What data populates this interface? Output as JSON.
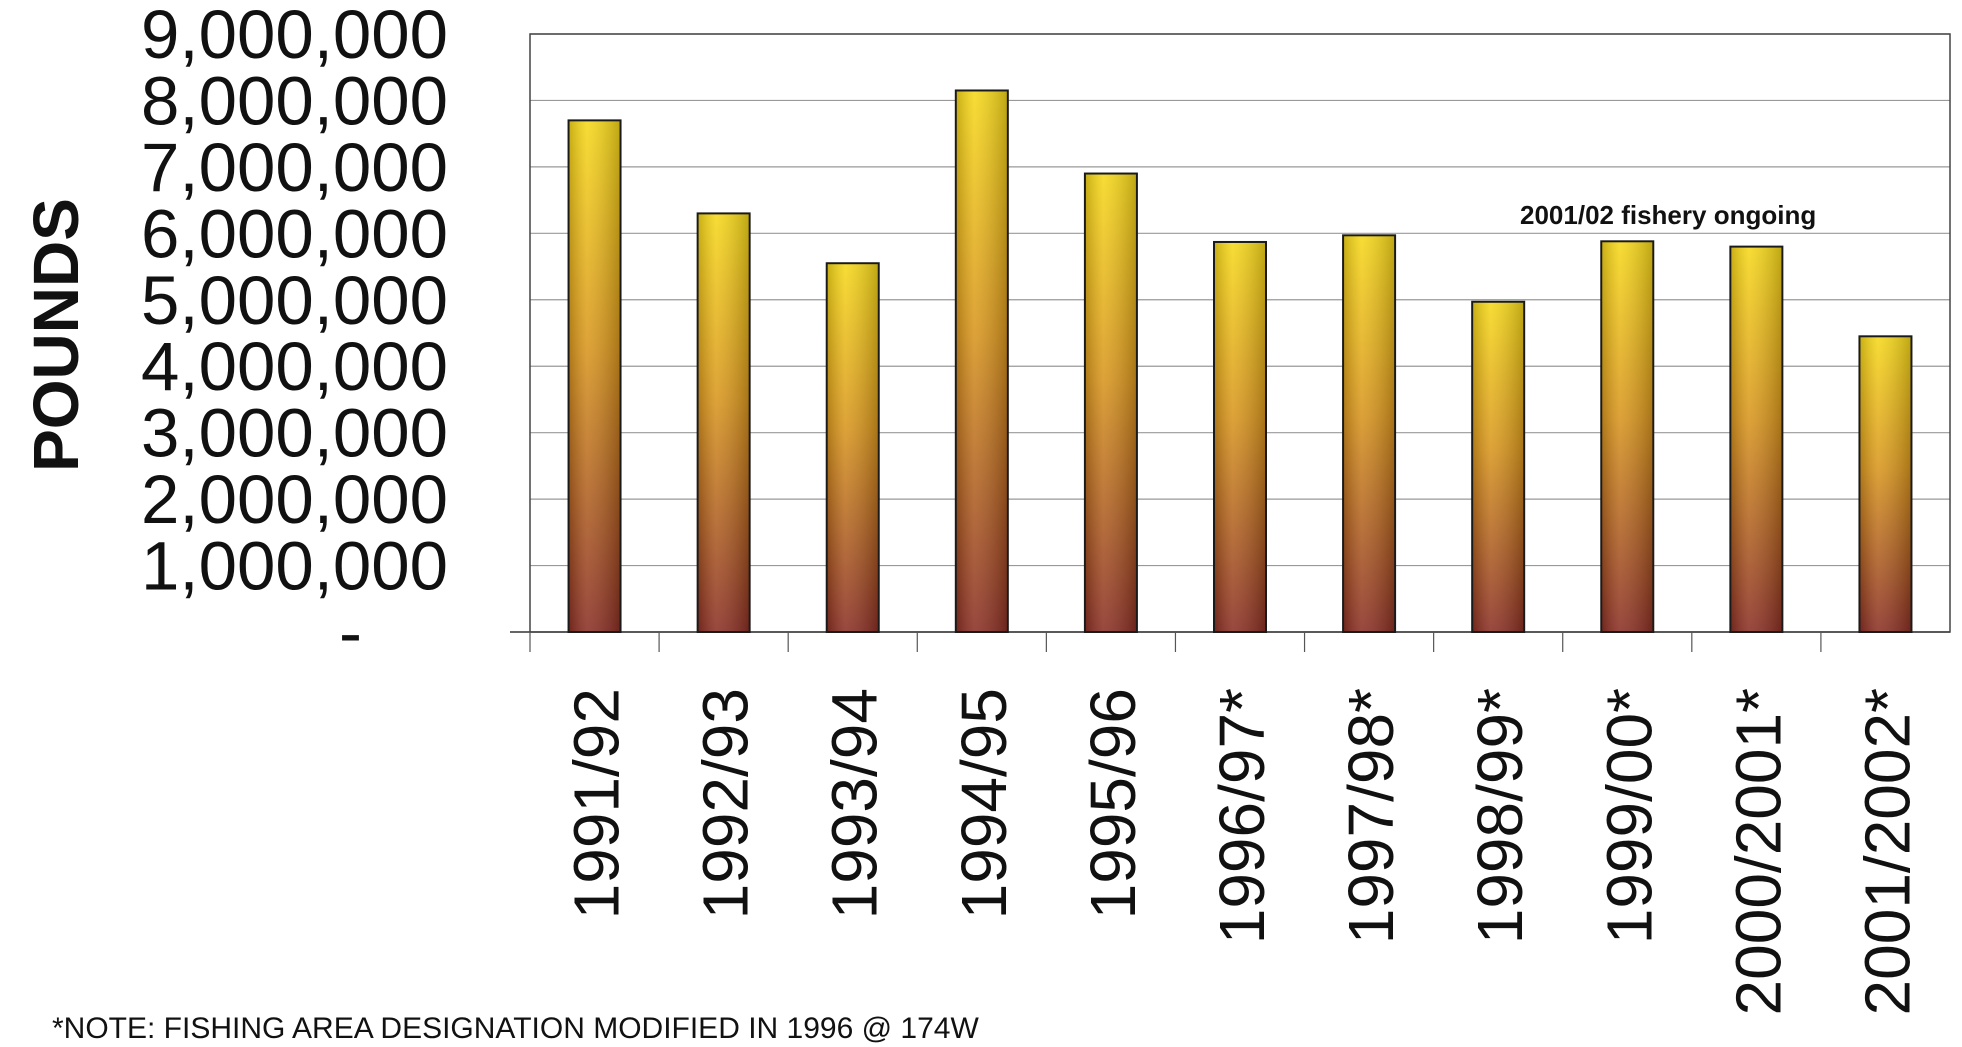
{
  "chart_data": {
    "type": "bar",
    "ylabel": "POUNDS",
    "xlabel": "",
    "ylim": [
      0,
      9000000
    ],
    "yticks": [
      0,
      1000000,
      2000000,
      3000000,
      4000000,
      5000000,
      6000000,
      7000000,
      8000000,
      9000000
    ],
    "ytick_labels": [
      "-",
      "1,000,000",
      "2,000,000",
      "3,000,000",
      "4,000,000",
      "5,000,000",
      "6,000,000",
      "7,000,000",
      "8,000,000",
      "9,000,000"
    ],
    "grid": "horizontal",
    "categories": [
      "1991/92",
      "1992/93",
      "1993/94",
      "1994/95",
      "1995/96",
      "1996/97*",
      "1997/98*",
      "1998/99*",
      "1999/00*",
      "2000/2001*",
      "2001/2002*"
    ],
    "values": [
      7700000,
      6300000,
      5550000,
      8150000,
      6900000,
      5870000,
      5970000,
      4970000,
      5880000,
      5800000,
      4450000
    ],
    "annotations": [
      {
        "text": "2001/02 fishery ongoing"
      }
    ],
    "bar_gradient": {
      "top": "#f6d81a",
      "middle": "#d8951e",
      "bottom": "#8a2f25"
    },
    "grid_color": "#999999",
    "bar_edge": "#1a1a1a"
  },
  "footnote": "*NOTE: FISHING AREA DESIGNATION MODIFIED IN 1996 @ 174W"
}
